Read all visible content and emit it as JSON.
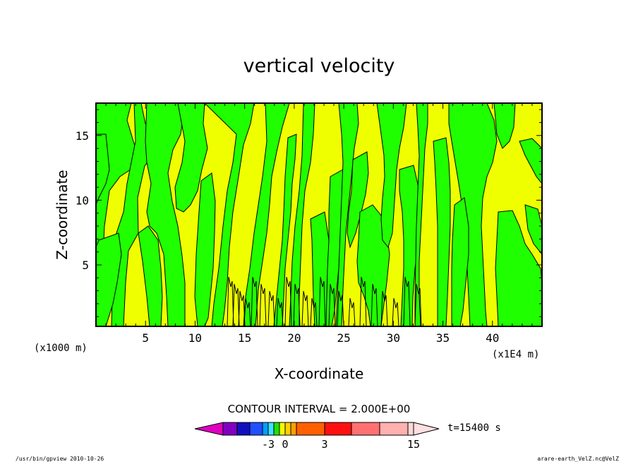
{
  "chart_data": {
    "type": "heatmap",
    "title": "vertical velocity",
    "xlabel": "X-coordinate",
    "ylabel": "Z-coordinate",
    "x_unit_left": "(x1000 m)",
    "x_unit_right": "(x1E4 m)",
    "xlim": [
      0,
      45
    ],
    "ylim": [
      0.25,
      17.5
    ],
    "xticks": [
      5,
      10,
      15,
      20,
      25,
      30,
      35,
      40
    ],
    "yticks": [
      5,
      10,
      15
    ],
    "contour_interval_text": "CONTOUR INTERVAL = 2.000E+00",
    "time_text": "t=15400 s",
    "colorbar_ticks": [
      "-3",
      "0",
      "3",
      "15"
    ],
    "colorbar_tick_values": [
      -3,
      0,
      3,
      15
    ],
    "colorbar_levels": [
      -12,
      -6,
      -4,
      -3,
      -2,
      -1,
      0,
      1,
      2,
      3,
      6,
      9,
      12,
      15,
      18
    ],
    "colorbar_colors": [
      "#e000c0",
      "#8000c0",
      "#1010c0",
      "#2050ff",
      "#00a0ff",
      "#40e0ff",
      "#20e000",
      "#f0ff00",
      "#ffd000",
      "#ffa000",
      "#ff6000",
      "#ff1010",
      "#ff7070",
      "#ffb0b0",
      "#ffd8d8",
      "#ffe0e0"
    ],
    "field_colors": {
      "positive": "#f0ff00",
      "negative": "#20ff00"
    },
    "footer_left": "/usr/bin/gpview  2010-10-26",
    "footer_right": "arare-earth_VelZ.nc@VelZ"
  }
}
